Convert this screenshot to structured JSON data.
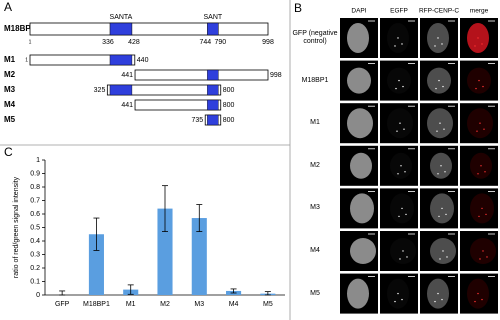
{
  "panel_a": {
    "label": "A",
    "protein": {
      "name": "M18BP1",
      "start": 1,
      "end": 998
    },
    "domains": [
      {
        "name": "SANTA",
        "start": 336,
        "end": 428
      },
      {
        "name": "SANT",
        "start": 744,
        "end": 790
      }
    ],
    "constructs": [
      {
        "name": "M1",
        "start": 1,
        "end": 440
      },
      {
        "name": "M2",
        "start": 441,
        "end": 998
      },
      {
        "name": "M3",
        "start": 325,
        "end": 800
      },
      {
        "name": "M4",
        "start": 441,
        "end": 800
      },
      {
        "name": "M5",
        "start": 735,
        "end": 800
      }
    ]
  },
  "panel_b": {
    "label": "B",
    "columns": [
      "DAPI",
      "EGFP",
      "RFP-CENP-C",
      "merge"
    ],
    "rows": [
      "GFP (negative control)",
      "M18BP1",
      "M1",
      "M2",
      "M3",
      "M4",
      "M5"
    ]
  },
  "chart_data": {
    "type": "bar",
    "label": "C",
    "ylabel": "ratio of red/green signal intensity",
    "categories": [
      "GFP",
      "M18BP1",
      "M1",
      "M2",
      "M3",
      "M4",
      "M5"
    ],
    "values": [
      0,
      0.45,
      0.04,
      0.64,
      0.57,
      0.03,
      0.01
    ],
    "errors": [
      0.03,
      0.12,
      0.035,
      0.17,
      0.1,
      0.015,
      0.015
    ],
    "color": "#5a9ee0",
    "ylim": [
      0,
      1
    ],
    "yticks": [
      0,
      0.1,
      0.2,
      0.3,
      0.4,
      0.5,
      0.6,
      0.7,
      0.8,
      0.9,
      1
    ]
  }
}
